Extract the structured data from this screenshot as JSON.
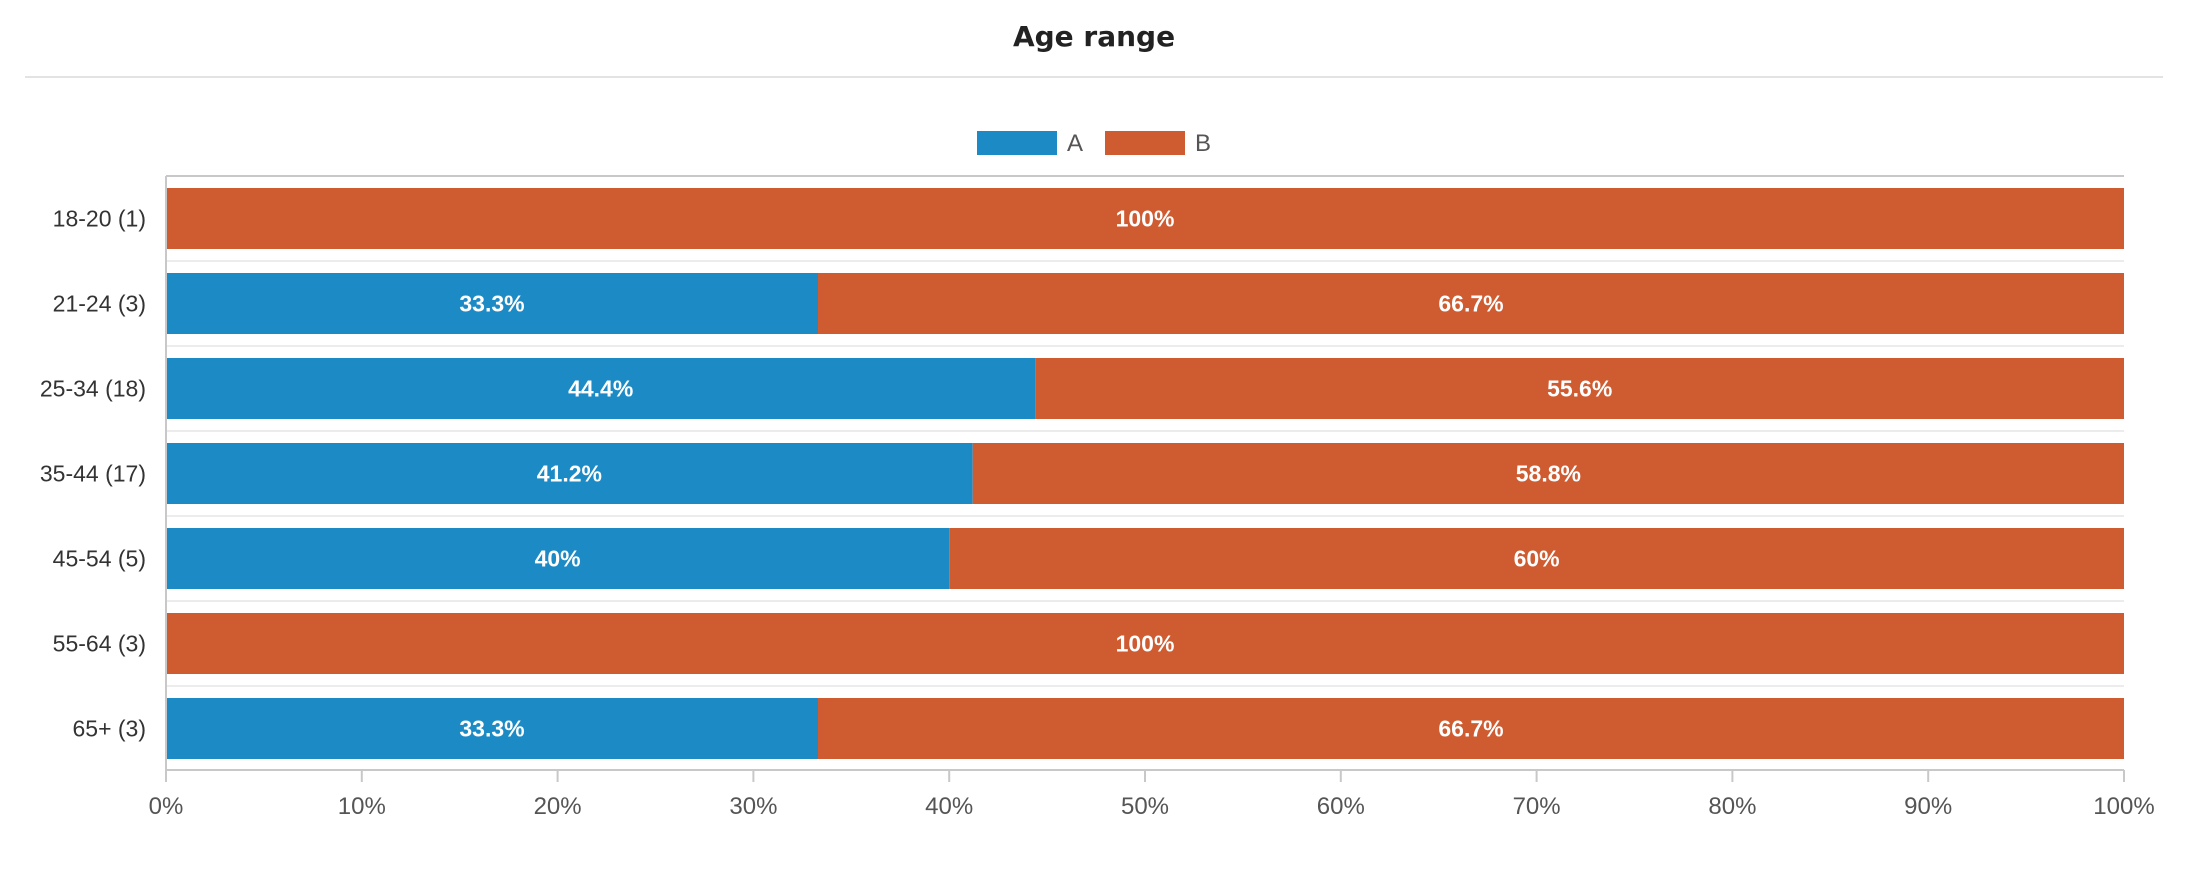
{
  "chart_data": {
    "type": "bar",
    "orientation": "horizontal",
    "stacked": "percent",
    "title": "Age range",
    "categories": [
      "18-20 (1)",
      "21-24 (3)",
      "25-34 (18)",
      "35-44 (17)",
      "45-54 (5)",
      "55-64 (3)",
      "65+ (3)"
    ],
    "series": [
      {
        "name": "A",
        "color": "#1c8bc5",
        "values": [
          0,
          33.3,
          44.4,
          41.2,
          40,
          0,
          33.3
        ],
        "labels": [
          "",
          "33.3%",
          "44.4%",
          "41.2%",
          "40%",
          "",
          "33.3%"
        ]
      },
      {
        "name": "B",
        "color": "#cf5b31",
        "values": [
          100,
          66.7,
          55.6,
          58.8,
          60,
          100,
          66.7
        ],
        "labels": [
          "100%",
          "66.7%",
          "55.6%",
          "58.8%",
          "60%",
          "100%",
          "66.7%"
        ]
      }
    ],
    "xlim": [
      0,
      100
    ],
    "xticks": [
      "0%",
      "10%",
      "20%",
      "30%",
      "40%",
      "50%",
      "60%",
      "70%",
      "80%",
      "90%",
      "100%"
    ],
    "legend_position": "top-center",
    "grid": false
  }
}
